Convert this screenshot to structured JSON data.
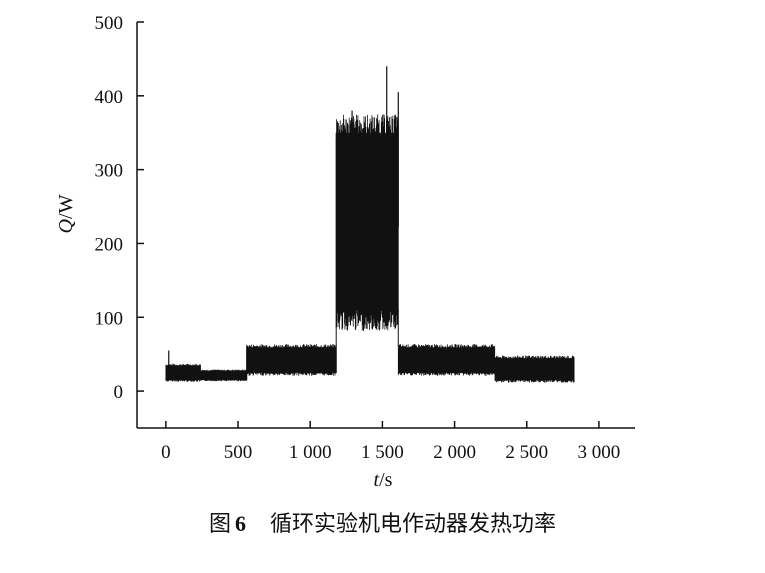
{
  "chart_data": {
    "type": "line",
    "xlabel": "t/s",
    "ylabel": "Q/W",
    "xlim": [
      -200,
      3250
    ],
    "ylim": [
      -50,
      500
    ],
    "x_ticks": [
      0,
      500,
      1000,
      1500,
      2000,
      2500,
      3000
    ],
    "x_tick_labels": [
      "0",
      "500",
      "1 000",
      "1 500",
      "2 000",
      "2 500",
      "3 000"
    ],
    "y_ticks": [
      0,
      100,
      200,
      300,
      400,
      500
    ],
    "y_tick_labels": [
      "0",
      "100",
      "200",
      "300",
      "400",
      "500"
    ],
    "series_color": "#111111",
    "segments": [
      {
        "x_start": 0,
        "x_end": 240,
        "low": 15,
        "high": 35
      },
      {
        "x_start": 240,
        "x_end": 560,
        "low": 15,
        "high": 28
      },
      {
        "x_start": 560,
        "x_end": 1180,
        "low": 25,
        "high": 60
      },
      {
        "x_start": 1180,
        "x_end": 1610,
        "low": 110,
        "high": 350
      },
      {
        "x_start": 1610,
        "x_end": 2280,
        "low": 25,
        "high": 60
      },
      {
        "x_start": 2280,
        "x_end": 2830,
        "low": 15,
        "high": 45
      }
    ],
    "spikes": [
      {
        "x": 20,
        "y": 55
      },
      {
        "x": 1290,
        "y": 380
      },
      {
        "x": 1530,
        "y": 440
      },
      {
        "x": 1610,
        "y": 405
      }
    ]
  },
  "caption": {
    "label": "图",
    "number": "6",
    "text": "循环实验机电作动器发热功率"
  }
}
